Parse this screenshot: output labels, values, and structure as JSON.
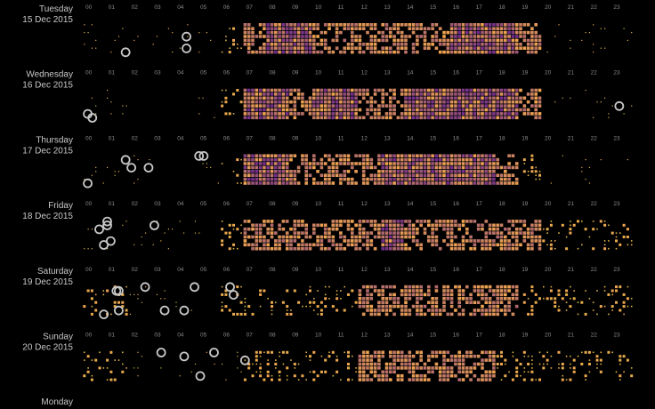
{
  "chart_data": {
    "type": "activity-grid",
    "hours": [
      "00",
      "01",
      "02",
      "03",
      "04",
      "05",
      "06",
      "07",
      "08",
      "09",
      "10",
      "11",
      "12",
      "13",
      "14",
      "15",
      "16",
      "17",
      "18",
      "19",
      "20",
      "21",
      "22",
      "23"
    ],
    "days": [
      {
        "name": "Tuesday",
        "date": "15 Dec 2015",
        "values": [
          1,
          1,
          1,
          1,
          1,
          1,
          2,
          3,
          4,
          4,
          3,
          3,
          3,
          3,
          3,
          3,
          4,
          4,
          4,
          3,
          1,
          1,
          1,
          1
        ],
        "events": [
          [
            4.4,
            3
          ],
          [
            4.4,
            6
          ],
          [
            1.75,
            7
          ]
        ]
      },
      {
        "name": "Wednesday",
        "date": "16 Dec 2015",
        "values": [
          1,
          1,
          0,
          0,
          0,
          1,
          2,
          4,
          4,
          3,
          4,
          4,
          3,
          3,
          4,
          4,
          4,
          4,
          4,
          3,
          1,
          1,
          1,
          1
        ],
        "events": [
          [
            0.1,
            6
          ],
          [
            0.3,
            7
          ],
          [
            23.25,
            4
          ]
        ]
      },
      {
        "name": "Thursday",
        "date": "17 Dec 2015",
        "values": [
          1,
          1,
          1,
          0,
          0,
          1,
          2,
          4,
          4,
          3,
          3,
          3,
          3,
          4,
          4,
          4,
          4,
          4,
          3,
          2,
          1,
          1,
          1,
          1
        ],
        "events": [
          [
            1.75,
            1
          ],
          [
            2,
            3
          ],
          [
            2.75,
            3
          ],
          [
            4.95,
            0
          ],
          [
            5.15,
            0
          ],
          [
            0.1,
            7
          ]
        ]
      },
      {
        "name": "Friday",
        "date": "18 Dec 2015",
        "values": [
          1,
          1,
          1,
          1,
          1,
          1,
          2,
          3,
          3,
          3,
          3,
          3,
          3,
          4,
          3,
          3,
          3,
          3,
          3,
          3,
          2,
          2,
          2,
          2
        ],
        "events": [
          [
            0.95,
            0
          ],
          [
            0.95,
            1
          ],
          [
            0.6,
            2
          ],
          [
            3,
            1
          ],
          [
            1.1,
            5
          ],
          [
            0.8,
            6
          ]
        ]
      },
      {
        "name": "Saturday",
        "date": "19 Dec 2015",
        "values": [
          2,
          2,
          1,
          1,
          1,
          1,
          2,
          2,
          2,
          2,
          2,
          2,
          3,
          3,
          3,
          3,
          3,
          3,
          3,
          2,
          2,
          2,
          2,
          2
        ],
        "events": [
          [
            1.35,
            1
          ],
          [
            1.45,
            1
          ],
          [
            2.6,
            0
          ],
          [
            4.75,
            0
          ],
          [
            6.3,
            0
          ],
          [
            6.45,
            2
          ],
          [
            1.45,
            6
          ],
          [
            3.45,
            6
          ],
          [
            4.3,
            6
          ],
          [
            0.8,
            7
          ]
        ]
      },
      {
        "name": "Sunday",
        "date": "20 Dec 2015",
        "values": [
          2,
          2,
          1,
          1,
          1,
          1,
          1,
          2,
          2,
          2,
          2,
          2,
          3,
          3,
          3,
          3,
          3,
          3,
          2,
          2,
          2,
          2,
          2,
          2
        ],
        "events": [
          [
            3.3,
            0
          ],
          [
            4.3,
            1
          ],
          [
            5.6,
            0
          ],
          [
            6.95,
            2
          ],
          [
            5,
            6
          ]
        ]
      },
      {
        "name": "Monday"
      }
    ],
    "ylim": [
      0,
      4
    ]
  }
}
